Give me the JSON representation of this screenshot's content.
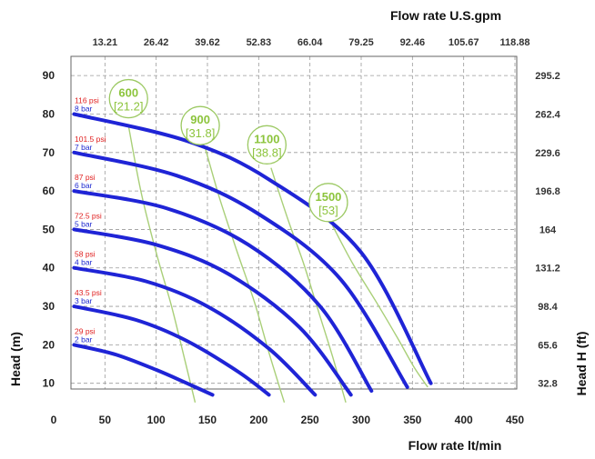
{
  "chart_data": {
    "type": "line",
    "xlabel": "Flow rate lt/min",
    "x2label": "Flow rate U.S.gpm",
    "ylabel": "Head (m)",
    "y2label": "Head H (ft)",
    "xlim": [
      0,
      450
    ],
    "ylim": [
      0,
      95
    ],
    "x_ticks": [
      "0",
      "50",
      "100",
      "150",
      "200",
      "250",
      "300",
      "350",
      "400",
      "450"
    ],
    "y_ticks": [
      "10",
      "20",
      "30",
      "40",
      "50",
      "60",
      "70",
      "80",
      "90"
    ],
    "top_ticks": [
      "13.21",
      "26.42",
      "39.62",
      "52.83",
      "66.04",
      "79.25",
      "92.46",
      "105.67",
      "118.88"
    ],
    "right_ticks": [
      "32.8",
      "65.6",
      "98.4",
      "131.2",
      "164",
      "196.8",
      "229.6",
      "262.4",
      "295.2"
    ],
    "grid": true,
    "series": [
      {
        "psi": "29 psi",
        "bar": "2 bar",
        "x": [
          20,
          60,
          100,
          130,
          155
        ],
        "y": [
          20,
          17.5,
          13.5,
          10,
          7
        ]
      },
      {
        "psi": "43.5 psi",
        "bar": "3 bar",
        "x": [
          20,
          80,
          130,
          180,
          210
        ],
        "y": [
          30,
          26.5,
          21,
          13,
          7
        ]
      },
      {
        "psi": "58 psi",
        "bar": "4 bar",
        "x": [
          20,
          90,
          150,
          210,
          255
        ],
        "y": [
          40,
          36.5,
          30,
          19,
          7
        ]
      },
      {
        "psi": "72.5 psi",
        "bar": "5 bar",
        "x": [
          20,
          100,
          170,
          240,
          290
        ],
        "y": [
          50,
          46,
          38.5,
          24.5,
          7
        ]
      },
      {
        "psi": "87 psi",
        "bar": "6 bar",
        "x": [
          20,
          110,
          190,
          260,
          310
        ],
        "y": [
          60,
          55.5,
          46,
          30,
          8
        ]
      },
      {
        "psi": "101.5 psi",
        "bar": "7 bar",
        "x": [
          20,
          120,
          200,
          280,
          345
        ],
        "y": [
          70,
          64,
          54,
          37,
          9
        ]
      },
      {
        "psi": "116 psi",
        "bar": "8 bar",
        "x": [
          20,
          130,
          210,
          300,
          368
        ],
        "y": [
          80,
          73,
          63,
          44,
          10
        ]
      }
    ],
    "power_curves": [
      {
        "top": "600",
        "bottom": "[21.2]",
        "label_x": 73,
        "label_y": 84,
        "x": [
          73,
          85,
          100,
          115,
          128,
          138
        ],
        "y": [
          77,
          60,
          44,
          30,
          16,
          5
        ]
      },
      {
        "top": "900",
        "bottom": "[31.8]",
        "label_x": 143,
        "label_y": 77,
        "x": [
          148,
          162,
          178,
          196,
          210,
          225
        ],
        "y": [
          71,
          58,
          45,
          31,
          18,
          5
        ]
      },
      {
        "top": "1100",
        "bottom": "[38.8]",
        "label_x": 208,
        "label_y": 72,
        "x": [
          212,
          228,
          244,
          258,
          272,
          285
        ],
        "y": [
          66,
          53,
          41,
          29,
          17,
          5
        ]
      },
      {
        "top": "1500",
        "bottom": "[53]",
        "label_x": 268,
        "label_y": 57,
        "x": [
          272,
          292,
          315,
          335,
          352,
          365
        ],
        "y": [
          51,
          41,
          31,
          22,
          14,
          9
        ]
      }
    ]
  }
}
